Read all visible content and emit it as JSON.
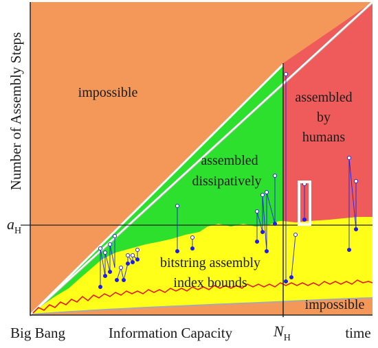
{
  "y_axis_label": "Number of Assembly Steps",
  "x_axis_labels": {
    "origin": "Big Bang",
    "middle": "Information Capacity",
    "end": "time"
  },
  "markers": {
    "a_H": {
      "base": "a",
      "sub": "H"
    },
    "N_H": {
      "base": "N",
      "sub": "H"
    }
  },
  "regions": {
    "impossible_upper": "impossible",
    "assembled_dissipatively": [
      "assembled",
      "dissipatively"
    ],
    "assembled_by_humans": [
      "assembled",
      "by",
      "humans"
    ],
    "bitstring_bounds": [
      "bitstring assembly",
      "index bounds"
    ],
    "impossible_lower": "impossible"
  },
  "colors": {
    "impossible": "#f4985a",
    "dissipative": "#2ee02e",
    "humans": "#ef5b5b",
    "bounds": "#ffff1a",
    "lower_impossible": "#f4985a",
    "trajectory": "#1e1ee8",
    "highlight_box": "#ffffff",
    "red_line": "#e41a1a"
  }
}
